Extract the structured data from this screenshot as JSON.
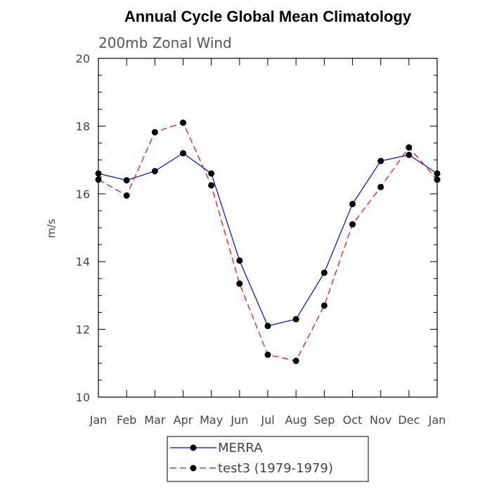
{
  "chart_data": {
    "type": "line",
    "title": "Annual Cycle Global Mean Climatology",
    "subtitle": "200mb Zonal Wind",
    "xlabel": "",
    "ylabel": "m/s",
    "categories": [
      "Jan",
      "Feb",
      "Mar",
      "Apr",
      "May",
      "Jun",
      "Jul",
      "Aug",
      "Sep",
      "Oct",
      "Nov",
      "Dec",
      "Jan"
    ],
    "ylim": [
      10,
      20
    ],
    "yticks": [
      10,
      12,
      14,
      16,
      18,
      20
    ],
    "grid": false,
    "legend_position": "bottom",
    "series": [
      {
        "name": "MERRA",
        "color": "#0000ff",
        "style": "solid",
        "marker": "circle",
        "values": [
          16.6,
          16.4,
          16.67,
          17.2,
          16.6,
          14.03,
          12.1,
          12.3,
          13.67,
          15.7,
          16.97,
          17.15,
          16.6
        ]
      },
      {
        "name": "test3 (1979-1979)",
        "color": "#ff0000",
        "style": "dashed",
        "marker": "circle",
        "values": [
          16.42,
          15.95,
          17.82,
          18.1,
          16.25,
          13.35,
          11.25,
          11.07,
          12.7,
          15.1,
          16.2,
          17.37,
          16.42
        ]
      }
    ]
  }
}
